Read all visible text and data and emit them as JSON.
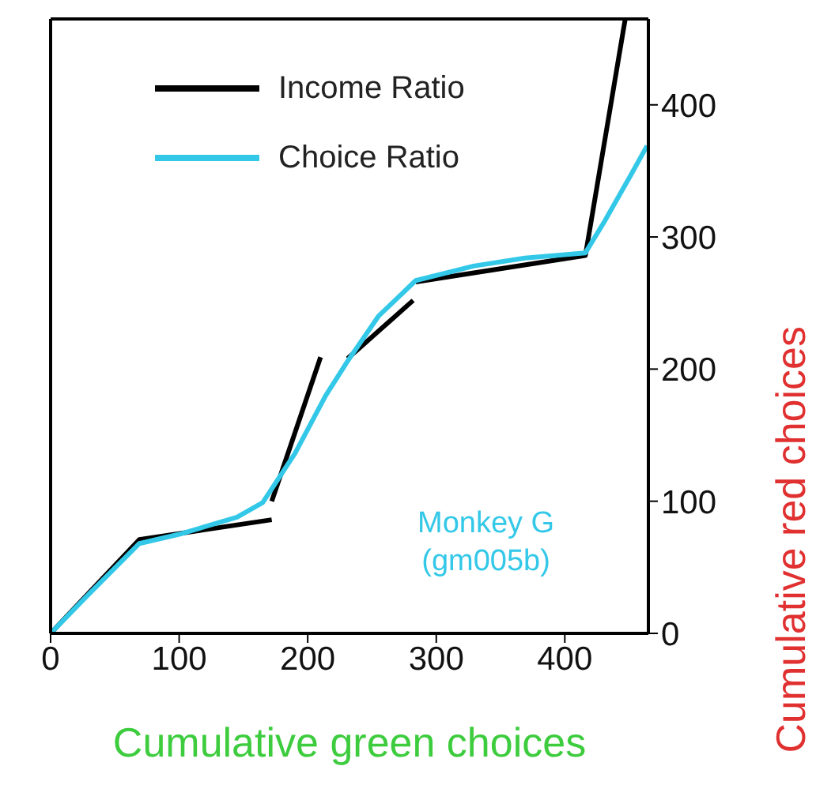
{
  "chart_data": {
    "type": "line",
    "xlabel": "Cumulative green choices",
    "ylabel": "Cumulative red choices",
    "xlim": [
      0,
      465
    ],
    "ylim": [
      0,
      465
    ],
    "xticks": [
      0,
      100,
      200,
      300,
      400
    ],
    "yticks": [
      0,
      100,
      200,
      300,
      400
    ],
    "legend": "top",
    "marker": "none",
    "line_style": "solid",
    "annotations": [
      "Monkey G",
      "(gm005b)"
    ],
    "series": [
      {
        "name": "Income Ratio",
        "color": "#000000",
        "x": [
          0,
          69,
          172
        ],
        "values": [
          0,
          71,
          86
        ]
      },
      {
        "color": "#000000",
        "x": [
          172,
          210
        ],
        "values": [
          100,
          209
        ]
      },
      {
        "color": "#000000",
        "x": [
          231,
          282
        ],
        "values": [
          208,
          252
        ]
      },
      {
        "color": "#000000",
        "x": [
          284,
          416,
          447
        ],
        "values": [
          266,
          286,
          465
        ]
      },
      {
        "name": "Choice Ratio",
        "color": "#33c8e8",
        "x": [
          0,
          30,
          69,
          100,
          145,
          165,
          190,
          214,
          231,
          255,
          284,
          329,
          369,
          416,
          431,
          452,
          464
        ],
        "values": [
          0,
          30,
          68,
          75,
          88,
          99,
          136,
          180,
          206,
          240,
          267,
          278,
          284,
          288,
          312,
          348,
          369
        ]
      }
    ]
  }
}
